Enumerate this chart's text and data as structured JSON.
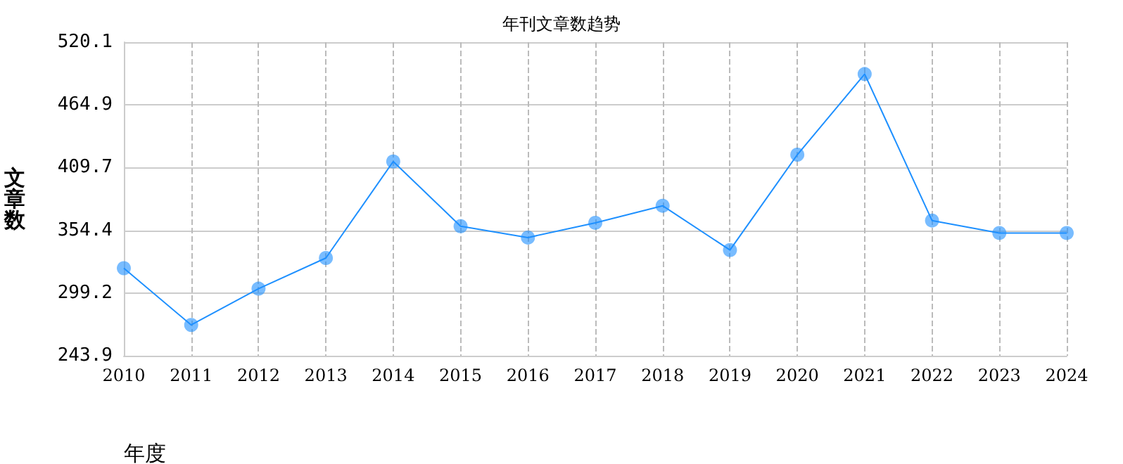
{
  "chart_data": {
    "type": "line",
    "title": "年刊文章数趋势",
    "xlabel": "年度",
    "ylabel": "文章数",
    "categories": [
      "2010",
      "2011",
      "2012",
      "2013",
      "2014",
      "2015",
      "2016",
      "2017",
      "2018",
      "2019",
      "2020",
      "2021",
      "2022",
      "2023",
      "2024"
    ],
    "series": [
      {
        "color": "#1e90ff",
        "values": [
          321,
          271,
          303,
          330,
          415,
          358,
          348,
          361,
          376,
          337,
          421,
          492,
          363,
          352,
          352
        ]
      }
    ],
    "ylim": [
      243.9,
      520.1
    ],
    "yticks": [
      243.9,
      299.2,
      354.4,
      409.7,
      464.9,
      520.1
    ],
    "grid": true,
    "marker": "circle",
    "line_style": "solid"
  }
}
